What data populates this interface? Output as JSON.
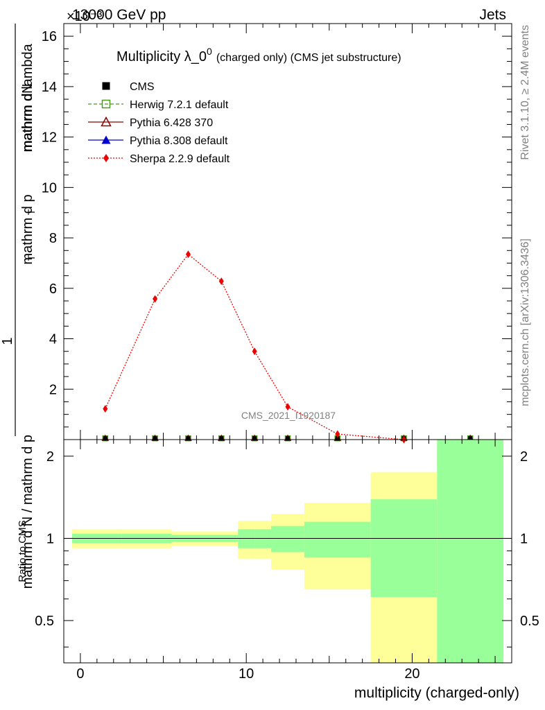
{
  "header": {
    "left": "13000 GeV pp",
    "right": "Jets",
    "exponent": "×10⁻³"
  },
  "side_labels": {
    "rivet": "Rivet 3.1.10, ≥ 2.4M events",
    "mcplots": "mcplots.cern.ch [arXiv:1306.3436]"
  },
  "chart_data": [
    {
      "type": "line",
      "title_main": "Multiplicity λ_0",
      "title_sup": "0",
      "title_sub": "(charged only) (CMS jet substructure)",
      "ylabel_top": "1",
      "ylabel_numerator": "mathrm dN",
      "ylabel_denominator_1": "mathrm d N / mathrm d p",
      "ylabel_denominator_1_sub": "T",
      "ylabel_denominator_2": "mathrm d p",
      "ylabel_denominator_2_sub": "T",
      "ylabel_denominator_3": "mathrm d lambda",
      "watermark": "CMS_2021_I1920187",
      "xlim": [
        -1,
        26
      ],
      "ylim": [
        0,
        16.5
      ],
      "y_multiplier": "1e-3",
      "yticks": [
        2,
        4,
        6,
        8,
        10,
        12,
        14,
        16
      ],
      "legend_position": "top-left",
      "legend": [
        {
          "name": "CMS",
          "color": "#000000",
          "marker": "filled-square",
          "line": "none"
        },
        {
          "name": "Herwig 7.2.1 default",
          "color": "#4c9a1a",
          "marker": "open-square",
          "line": "dashed"
        },
        {
          "name": "Pythia 6.428 370",
          "color": "#8b0000",
          "marker": "open-triangle",
          "line": "solid"
        },
        {
          "name": "Pythia 8.308 default",
          "color": "#0000cc",
          "marker": "filled-triangle",
          "line": "solid"
        },
        {
          "name": "Sherpa 2.2.9 default",
          "color": "#ee0000",
          "marker": "filled-diamond",
          "line": "dotted"
        }
      ],
      "series": [
        {
          "name": "CMS",
          "x": [
            1.5,
            4.5,
            6.5,
            8.5,
            10.5,
            12.5,
            15.5,
            19.5,
            23.5
          ],
          "values": [
            0.05,
            0.05,
            0.05,
            0.05,
            0.05,
            0.05,
            0.05,
            0.05,
            0.05
          ]
        },
        {
          "name": "Sherpa 2.2.9 default",
          "x": [
            1.5,
            4.5,
            6.5,
            8.5,
            10.5,
            12.5,
            15.5,
            19.5
          ],
          "values": [
            1.22,
            5.58,
            7.35,
            6.28,
            3.5,
            1.3,
            0.22,
            0.0
          ]
        }
      ]
    },
    {
      "type": "area",
      "ylabel": "Ratio to CMS",
      "xlabel": "multiplicity (charged-only)",
      "xticks": [
        0,
        10,
        20
      ],
      "yticks": [
        0.5,
        1,
        2
      ],
      "ylim": [
        0.35,
        2.3
      ],
      "y_scale": "log",
      "reference_line": 1,
      "bins": [
        {
          "x_low": -0.5,
          "x_high": 2.5,
          "inner": [
            0.96,
            1.04
          ],
          "outer": [
            0.92,
            1.08
          ]
        },
        {
          "x_low": 2.5,
          "x_high": 5.5,
          "inner": [
            0.96,
            1.04
          ],
          "outer": [
            0.92,
            1.08
          ]
        },
        {
          "x_low": 5.5,
          "x_high": 9.5,
          "inner": [
            0.97,
            1.03
          ],
          "outer": [
            0.94,
            1.06
          ]
        },
        {
          "x_low": 9.5,
          "x_high": 10.5,
          "inner": [
            0.92,
            1.08
          ],
          "outer": [
            0.84,
            1.16
          ]
        },
        {
          "x_low": 10.5,
          "x_high": 11.5,
          "inner": [
            0.92,
            1.08
          ],
          "outer": [
            0.84,
            1.16
          ]
        },
        {
          "x_low": 11.5,
          "x_high": 13.5,
          "inner": [
            0.89,
            1.11
          ],
          "outer": [
            0.77,
            1.23
          ]
        },
        {
          "x_low": 13.5,
          "x_high": 17.5,
          "inner": [
            0.85,
            1.15
          ],
          "outer": [
            0.65,
            1.35
          ]
        },
        {
          "x_low": 17.5,
          "x_high": 21.5,
          "inner": [
            0.61,
            1.39
          ],
          "outer": [
            0.35,
            1.75
          ]
        },
        {
          "x_low": 21.5,
          "x_high": 25.5,
          "inner": [
            0.35,
            2.3
          ],
          "outer": [
            0.35,
            2.3
          ]
        }
      ],
      "band_colors": {
        "inner": "#99ff99",
        "outer": "#ffff99"
      }
    }
  ]
}
